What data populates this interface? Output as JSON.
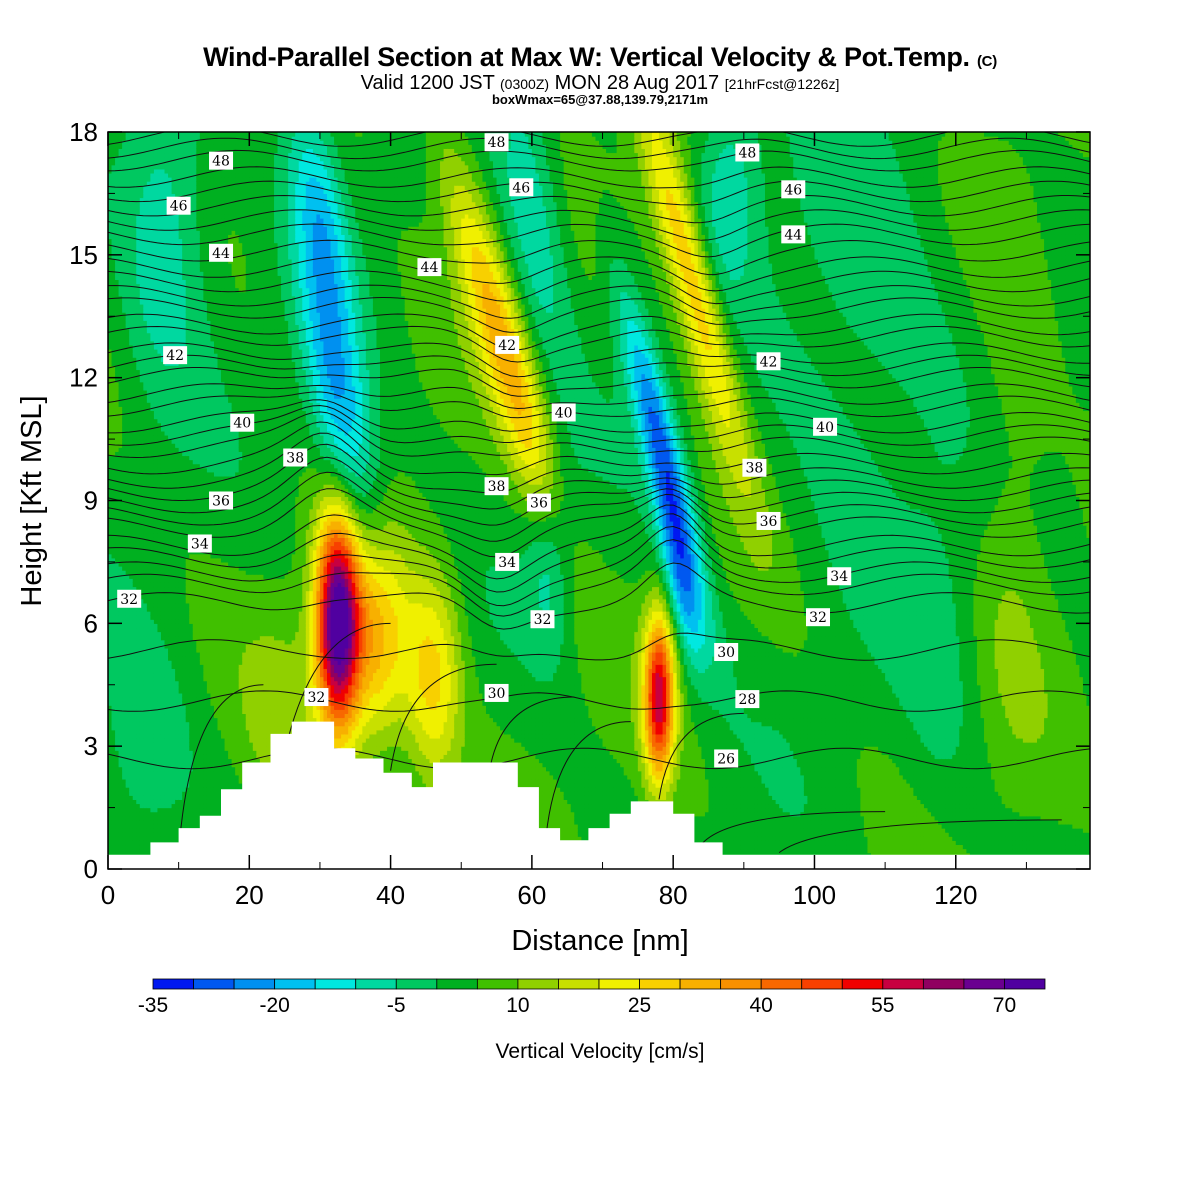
{
  "titles": {
    "main": "Wind-Parallel Section at Max W: Vertical Velocity & Pot.Temp.",
    "main_mark": "(C)",
    "valid_prefix": "Valid 1200 JST",
    "valid_utc": "(0300Z)",
    "valid_date": "MON 28 Aug 2017",
    "valid_fcst": "[21hrFcst@1226z]",
    "box": "boxWmax=65@37.88,139.79,2171m"
  },
  "chart_data": {
    "type": "heatmap",
    "xlabel": "Distance [nm]",
    "ylabel": "Height [Kft MSL]",
    "xlim": [
      0,
      139
    ],
    "ylim": [
      0,
      18
    ],
    "x_ticks": [
      0,
      20,
      40,
      60,
      80,
      100,
      120
    ],
    "y_ticks": [
      0,
      3,
      6,
      9,
      12,
      15,
      18
    ],
    "colorbar": {
      "title": "Vertical Velocity [cm/s]",
      "tick_labels": [
        "-35",
        "-20",
        "-5",
        "10",
        "25",
        "40",
        "55",
        "70"
      ],
      "tick_values": [
        -35,
        -20,
        -5,
        10,
        25,
        40,
        55,
        70
      ],
      "levels": [
        -35,
        -30,
        -25,
        -20,
        -15,
        -10,
        -5,
        0,
        5,
        10,
        15,
        20,
        25,
        30,
        35,
        40,
        45,
        50,
        55,
        60,
        65,
        70,
        75
      ],
      "colors": [
        "#0018f0",
        "#0058f0",
        "#0090f0",
        "#00c0f0",
        "#00e8e0",
        "#00d8a0",
        "#00c860",
        "#00b020",
        "#40c000",
        "#90d000",
        "#c8e000",
        "#f0f000",
        "#f8d000",
        "#f8b000",
        "#f89000",
        "#f86800",
        "#f84000",
        "#f00000",
        "#c80040",
        "#900060",
        "#6a0090",
        "#5000a0"
      ]
    },
    "terrain": [
      [
        0,
        0.35
      ],
      [
        6,
        0.35
      ],
      [
        6,
        0.65
      ],
      [
        10,
        0.65
      ],
      [
        10,
        1.0
      ],
      [
        13,
        1.0
      ],
      [
        13,
        1.3
      ],
      [
        16,
        1.3
      ],
      [
        16,
        1.95
      ],
      [
        19,
        1.95
      ],
      [
        19,
        2.6
      ],
      [
        23,
        2.6
      ],
      [
        23,
        3.3
      ],
      [
        26,
        3.3
      ],
      [
        26,
        3.6
      ],
      [
        32,
        3.6
      ],
      [
        32,
        2.95
      ],
      [
        35,
        2.95
      ],
      [
        35,
        2.7
      ],
      [
        39,
        2.7
      ],
      [
        39,
        2.35
      ],
      [
        43,
        2.35
      ],
      [
        43,
        2.0
      ],
      [
        46,
        2.0
      ],
      [
        46,
        2.6
      ],
      [
        58,
        2.6
      ],
      [
        58,
        2.0
      ],
      [
        61,
        2.0
      ],
      [
        61,
        1.0
      ],
      [
        64,
        1.0
      ],
      [
        64,
        0.7
      ],
      [
        68,
        0.7
      ],
      [
        68,
        1.0
      ],
      [
        71,
        1.0
      ],
      [
        71,
        1.35
      ],
      [
        74,
        1.35
      ],
      [
        74,
        1.65
      ],
      [
        80,
        1.65
      ],
      [
        80,
        1.35
      ],
      [
        83,
        1.35
      ],
      [
        83,
        0.65
      ],
      [
        87,
        0.65
      ],
      [
        87,
        0.35
      ],
      [
        139,
        0.35
      ]
    ],
    "w_features": [
      {
        "x": 32.5,
        "z": 6.0,
        "w": 70,
        "sx": 2.2,
        "sz": 1.9,
        "tilt": 0.0
      },
      {
        "x": 38.0,
        "z": 5.6,
        "w": 28,
        "sx": 3.2,
        "sz": 1.9,
        "tilt": 0.0
      },
      {
        "x": 78.0,
        "z": 4.2,
        "w": 52,
        "sx": 1.5,
        "sz": 1.4,
        "tilt": 0.0
      },
      {
        "x": 56.0,
        "z": 12.8,
        "w": 28,
        "sx": 2.6,
        "sz": 3.4,
        "tilt": -1.6
      },
      {
        "x": 82.5,
        "z": 14.5,
        "w": 28,
        "sx": 2.2,
        "sz": 3.4,
        "tilt": -1.5
      },
      {
        "x": 33.0,
        "z": 11.0,
        "w": -24,
        "sx": 3.0,
        "sz": 2.5,
        "tilt": -1.0
      },
      {
        "x": 30.0,
        "z": 16.0,
        "w": -18,
        "sx": 2.6,
        "sz": 2.2,
        "tilt": -0.8
      },
      {
        "x": 78.5,
        "z": 10.2,
        "w": -30,
        "sx": 1.9,
        "sz": 2.8,
        "tilt": -1.4
      },
      {
        "x": 81.0,
        "z": 7.0,
        "w": -20,
        "sx": 1.6,
        "sz": 1.5,
        "tilt": -1.0
      },
      {
        "x": 60.0,
        "z": 16.2,
        "w": -14,
        "sx": 3.0,
        "sz": 2.6,
        "tilt": -0.8
      },
      {
        "x": 8.0,
        "z": 16.0,
        "w": -14,
        "sx": 4.5,
        "sz": 3.0,
        "tilt": 0.0
      },
      {
        "x": 88.0,
        "z": 16.8,
        "w": -12,
        "sx": 3.0,
        "sz": 1.8,
        "tilt": 0.0
      },
      {
        "x": 107.0,
        "z": 13.0,
        "w": -8,
        "sx": 9.0,
        "sz": 4.0,
        "tilt": 0.0
      },
      {
        "x": 5.0,
        "z": 2.5,
        "w": -9,
        "sx": 5.0,
        "sz": 2.0,
        "tilt": 0.0
      },
      {
        "x": 63.0,
        "z": 7.8,
        "w": -14,
        "sx": 2.5,
        "sz": 1.6,
        "tilt": 0.0
      },
      {
        "x": 46.0,
        "z": 4.6,
        "w": 22,
        "sx": 2.8,
        "sz": 1.9,
        "tilt": 0.0
      },
      {
        "x": 25.0,
        "z": 3.6,
        "w": 7,
        "sx": 4.0,
        "sz": 2.0,
        "tilt": 0.0
      },
      {
        "x": 128.0,
        "z": 9.0,
        "w": 6,
        "sx": 4.0,
        "sz": 5.0,
        "tilt": 0.0
      },
      {
        "x": 118.0,
        "z": 5.0,
        "w": -5,
        "sx": 4.0,
        "sz": 3.0,
        "tilt": 0.0
      }
    ],
    "theta_contours": {
      "levels": [
        26,
        28,
        30,
        32,
        34,
        36,
        38,
        40,
        42,
        44,
        46,
        48
      ],
      "base_heights": [
        2.7,
        4.1,
        5.35,
        6.5,
        7.25,
        8.35,
        9.55,
        10.9,
        12.6,
        14.7,
        16.2,
        17.3
      ],
      "labels": [
        {
          "text": "48",
          "x": 16.0,
          "z": 17.3
        },
        {
          "text": "48",
          "x": 55.0,
          "z": 17.75
        },
        {
          "text": "48",
          "x": 90.5,
          "z": 17.5
        },
        {
          "text": "46",
          "x": 10.0,
          "z": 16.2
        },
        {
          "text": "46",
          "x": 58.5,
          "z": 16.65
        },
        {
          "text": "46",
          "x": 97.0,
          "z": 16.6
        },
        {
          "text": "44",
          "x": 16.0,
          "z": 15.05
        },
        {
          "text": "44",
          "x": 45.5,
          "z": 14.7
        },
        {
          "text": "44",
          "x": 97.0,
          "z": 15.5
        },
        {
          "text": "42",
          "x": 9.5,
          "z": 12.55
        },
        {
          "text": "42",
          "x": 56.5,
          "z": 12.8
        },
        {
          "text": "42",
          "x": 93.5,
          "z": 12.4
        },
        {
          "text": "40",
          "x": 19.0,
          "z": 10.9
        },
        {
          "text": "40",
          "x": 64.5,
          "z": 11.15
        },
        {
          "text": "40",
          "x": 101.5,
          "z": 10.8
        },
        {
          "text": "38",
          "x": 26.5,
          "z": 10.05
        },
        {
          "text": "38",
          "x": 55.0,
          "z": 9.35
        },
        {
          "text": "38",
          "x": 91.5,
          "z": 9.8
        },
        {
          "text": "36",
          "x": 16.0,
          "z": 9.0
        },
        {
          "text": "36",
          "x": 61.0,
          "z": 8.95
        },
        {
          "text": "36",
          "x": 93.5,
          "z": 8.5
        },
        {
          "text": "34",
          "x": 13.0,
          "z": 7.95
        },
        {
          "text": "34",
          "x": 56.5,
          "z": 7.5
        },
        {
          "text": "34",
          "x": 103.5,
          "z": 7.15
        },
        {
          "text": "32",
          "x": 3.0,
          "z": 6.6
        },
        {
          "text": "32",
          "x": 61.5,
          "z": 6.1
        },
        {
          "text": "32",
          "x": 100.5,
          "z": 6.15
        },
        {
          "text": "32",
          "x": 29.5,
          "z": 4.2
        },
        {
          "text": "30",
          "x": 55.0,
          "z": 4.3
        },
        {
          "text": "30",
          "x": 87.5,
          "z": 5.3
        },
        {
          "text": "28",
          "x": 90.5,
          "z": 4.15
        },
        {
          "text": "26",
          "x": 87.5,
          "z": 2.7
        }
      ]
    }
  }
}
